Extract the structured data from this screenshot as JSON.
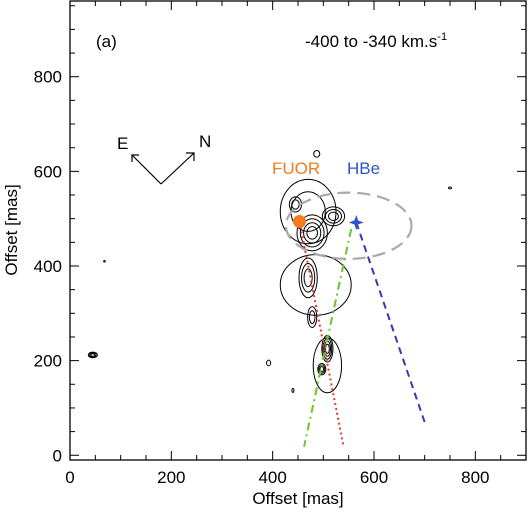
{
  "chart_data": {
    "type": "contour",
    "panel_label": "(a)",
    "velocity_range": "-400 to -340 km.s",
    "velocity_exponent": "-1",
    "xlabel": "Offset [mas]",
    "ylabel": "Offset [mas]",
    "xlim": [
      0,
      900
    ],
    "ylim": [
      -10,
      960
    ],
    "xticks": [
      0,
      200,
      400,
      600,
      800
    ],
    "yticks": [
      0,
      200,
      400,
      600,
      800
    ],
    "compass": {
      "east_label": "E",
      "north_label": "N"
    },
    "sources": [
      {
        "name": "FUOR",
        "x": 453,
        "y": 494,
        "color": "#f47c20",
        "marker": "circle"
      },
      {
        "name": "HBe",
        "x": 565,
        "y": 492,
        "color": "#2e55c8",
        "marker": "star"
      }
    ],
    "lines": [
      {
        "name": "FUOR jet axis",
        "style": "dotted",
        "color": "#e03a2a",
        "x": [
          453,
          540
        ],
        "y": [
          494,
          18
        ]
      },
      {
        "name": "HBe jet axis",
        "style": "dashed",
        "color": "#3a35b5",
        "x": [
          565,
          700
        ],
        "y": [
          492,
          70
        ]
      },
      {
        "name": "green axis",
        "style": "dash-dot",
        "color": "#6cc42e",
        "x": [
          555,
          462
        ],
        "y": [
          478,
          18
        ]
      }
    ],
    "ellipse": {
      "cx": 550,
      "cy": 485,
      "rx": 124,
      "ry": 70,
      "color": "#aaaaaa"
    },
    "contour_blobs": [
      {
        "cx": 45,
        "cy": 212,
        "rx": 9,
        "ry": 6,
        "levels": 3
      },
      {
        "cx": 68,
        "cy": 410,
        "rx": 1.5,
        "ry": 1.5,
        "levels": 1
      },
      {
        "cx": 487,
        "cy": 637,
        "rx": 6,
        "ry": 7,
        "levels": 1
      },
      {
        "cx": 750,
        "cy": 565,
        "rx": 3,
        "ry": 2,
        "levels": 1
      },
      {
        "cx": 392,
        "cy": 195,
        "rx": 4,
        "ry": 6,
        "levels": 1
      },
      {
        "cx": 440,
        "cy": 137,
        "rx": 2,
        "ry": 4,
        "levels": 1
      },
      {
        "cx": 508,
        "cy": 225,
        "rx": 11,
        "ry": 28,
        "levels": 4
      },
      {
        "cx": 497,
        "cy": 182,
        "rx": 8,
        "ry": 12,
        "levels": 3
      },
      {
        "cx": 508,
        "cy": 190,
        "rx": 28,
        "ry": 58,
        "levels": 1
      },
      {
        "cx": 478,
        "cy": 292,
        "rx": 9,
        "ry": 22,
        "levels": 2
      },
      {
        "cx": 470,
        "cy": 375,
        "rx": 18,
        "ry": 42,
        "levels": 3
      },
      {
        "cx": 485,
        "cy": 360,
        "rx": 70,
        "ry": 64,
        "levels": 1
      },
      {
        "cx": 478,
        "cy": 470,
        "rx": 30,
        "ry": 38,
        "levels": 4
      },
      {
        "cx": 470,
        "cy": 515,
        "rx": 55,
        "ry": 68,
        "levels": 2
      },
      {
        "cx": 520,
        "cy": 505,
        "rx": 22,
        "ry": 20,
        "levels": 3
      },
      {
        "cx": 445,
        "cy": 530,
        "rx": 12,
        "ry": 16,
        "levels": 2
      }
    ]
  }
}
